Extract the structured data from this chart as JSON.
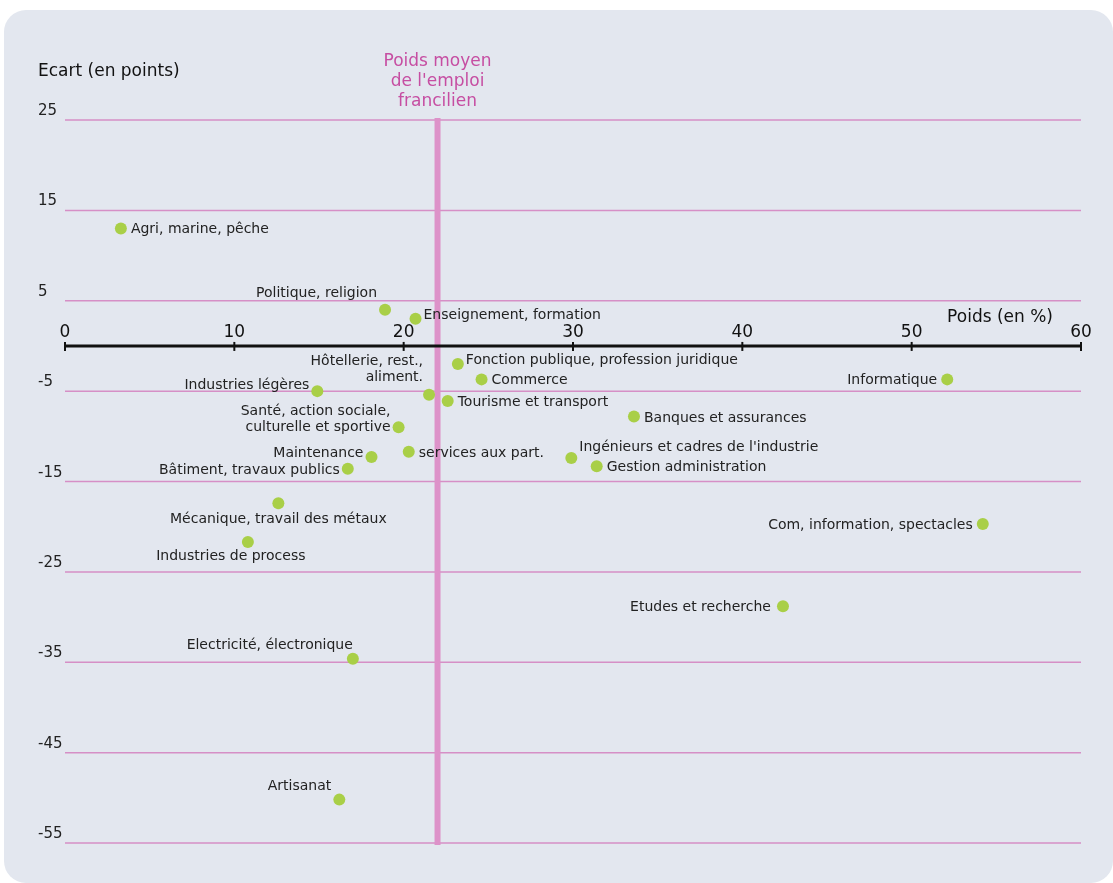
{
  "chart_data": {
    "type": "scatter",
    "xlabel": "Poids (en %)",
    "ylabel": "Ecart (en points)",
    "x": [
      3.3,
      18.9,
      20.7,
      23.2,
      24.6,
      52.1,
      14.9,
      21.5,
      22.6,
      33.6,
      19.7,
      20.3,
      18.1,
      29.9,
      31.4,
      16.7,
      12.6,
      54.2,
      10.8,
      42.4,
      17.0,
      16.2
    ],
    "series": [
      {
        "color": "#a9cf47",
        "values": [
          13,
          4,
          3,
          -2,
          -3.7,
          -3.7,
          -5,
          -5.4,
          -6.1,
          -7.8,
          -9,
          -11.7,
          -12.3,
          -12.4,
          -13.3,
          -13.6,
          -17.4,
          -19.7,
          -21.7,
          -28.8,
          -34.6,
          -50.2
        ]
      }
    ],
    "xlim": [
      0,
      60
    ],
    "xticks": [
      0,
      10,
      20,
      30,
      40,
      50,
      60
    ],
    "ylim": [
      -55,
      25
    ],
    "yticks": [
      25,
      15,
      5,
      -5,
      -15,
      -25,
      -35,
      -45,
      -55
    ],
    "grid": "y",
    "marker": "circle",
    "ref_lines": [
      {
        "axis": "x",
        "value": 22,
        "label": "Poids moyen de l'emploi francilien",
        "color": "#dd92c9"
      }
    ],
    "annotations": [
      {
        "text": "Agri, marine, pêche",
        "x": 3.3,
        "y": 13
      },
      {
        "text": "Politique, religion",
        "x": 18.9,
        "y": 4
      },
      {
        "text": "Enseignement, formation",
        "x": 20.7,
        "y": 3
      },
      {
        "text": "Fonction publique, profession juridique",
        "x": 23.2,
        "y": -2
      },
      {
        "text": "Commerce",
        "x": 24.6,
        "y": -3.7
      },
      {
        "text": "Informatique",
        "x": 52.1,
        "y": -3.7
      },
      {
        "text": "Industries légères",
        "x": 14.9,
        "y": -5
      },
      {
        "text": "Hôtellerie, rest., aliment.",
        "x": 21.5,
        "y": -5.4
      },
      {
        "text": "Tourisme et transport",
        "x": 22.6,
        "y": -6.1
      },
      {
        "text": "Banques et assurances",
        "x": 33.6,
        "y": -7.8
      },
      {
        "text": "Santé, action sociale, culturelle et sportive",
        "x": 19.7,
        "y": -9
      },
      {
        "text": "services aux part.",
        "x": 20.3,
        "y": -11.7
      },
      {
        "text": "Maintenance",
        "x": 18.1,
        "y": -12.3
      },
      {
        "text": "Ingénieurs et cadres de l'industrie",
        "x": 29.9,
        "y": -12.4
      },
      {
        "text": "Gestion administration",
        "x": 31.4,
        "y": -13.3
      },
      {
        "text": "Bâtiment, travaux publics",
        "x": 16.7,
        "y": -13.6
      },
      {
        "text": "Mécanique, travail des métaux",
        "x": 12.6,
        "y": -17.4
      },
      {
        "text": "Com, information, spectacles",
        "x": 54.2,
        "y": -19.7
      },
      {
        "text": "Industries de process",
        "x": 10.8,
        "y": -21.7
      },
      {
        "text": "Etudes et recherche",
        "x": 42.4,
        "y": -28.8
      },
      {
        "text": "Electricité, électronique",
        "x": 17.0,
        "y": -34.6
      },
      {
        "text": "Artisanat",
        "x": 16.2,
        "y": -50.2
      }
    ]
  }
}
